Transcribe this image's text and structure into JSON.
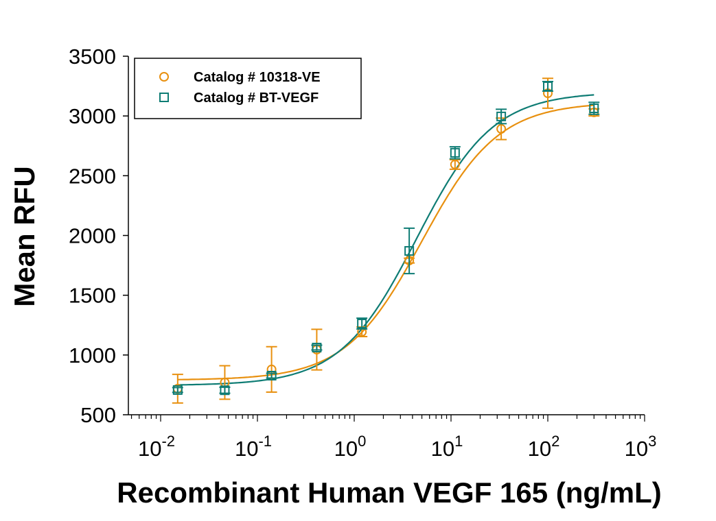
{
  "chart_data": {
    "type": "scatter",
    "title": "",
    "xlabel": "Recombinant Human VEGF 165 (ng/mL)",
    "ylabel": "Mean RFU",
    "xscale": "log",
    "xlim": [
      0.0047,
      1000
    ],
    "ylim": [
      500,
      3500
    ],
    "xticks": [
      {
        "value": 0.01,
        "base": "10",
        "exp": "-2"
      },
      {
        "value": 0.1,
        "base": "10",
        "exp": "-1"
      },
      {
        "value": 1,
        "base": "10",
        "exp": "0"
      },
      {
        "value": 10,
        "base": "10",
        "exp": "1"
      },
      {
        "value": 100,
        "base": "10",
        "exp": "2"
      },
      {
        "value": 1000,
        "base": "10",
        "exp": "3"
      }
    ],
    "yticks": [
      500,
      1000,
      1500,
      2000,
      2500,
      3000,
      3500
    ],
    "grid": false,
    "legend_position": "top-left",
    "x": [
      0.015,
      0.046,
      0.14,
      0.41,
      1.2,
      3.7,
      11,
      33,
      100,
      300
    ],
    "series": [
      {
        "name": "Catalog # 10318-VE",
        "marker": "circle",
        "color": "#E8900F",
        "values": [
          718,
          770,
          879,
          1045,
          1194,
          1790,
          2594,
          2892,
          3190,
          3030
        ],
        "errors": [
          120,
          140,
          190,
          170,
          40,
          20,
          40,
          90,
          125,
          30
        ],
        "fit": {
          "bottom": 790,
          "top": 3115,
          "ec50": 5.0,
          "hill": 1.1
        }
      },
      {
        "name": "Catalog # BT-VEGF",
        "marker": "square",
        "color": "#0E7C74",
        "values": [
          707,
          705,
          827,
          1062,
          1263,
          1871,
          2692,
          2996,
          3248,
          3064
        ],
        "errors": [
          20,
          25,
          20,
          20,
          45,
          190,
          50,
          60,
          40,
          50
        ],
        "fit": {
          "bottom": 745,
          "top": 3200,
          "ec50": 4.4,
          "hill": 1.1
        }
      }
    ]
  }
}
